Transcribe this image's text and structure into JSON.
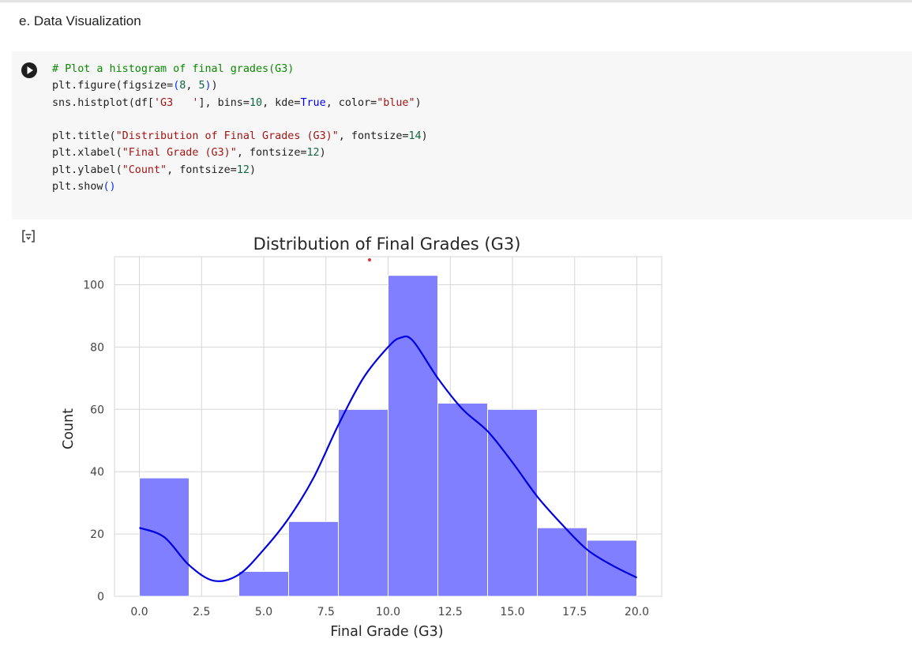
{
  "section": {
    "heading": "e. Data Visualization"
  },
  "code_cell": {
    "lines": [
      [
        {
          "t": "c",
          "v": "# Plot a histogram of final grades(G3)"
        }
      ],
      [
        {
          "t": "p",
          "v": "plt.figure(figsize="
        },
        {
          "t": "b",
          "v": "("
        },
        {
          "t": "n",
          "v": "8"
        },
        {
          "t": "p",
          "v": ", "
        },
        {
          "t": "n",
          "v": "5"
        },
        {
          "t": "b",
          "v": ")"
        },
        {
          "t": "p",
          "v": ")"
        }
      ],
      [
        {
          "t": "p",
          "v": "sns.histplot(df["
        },
        {
          "t": "s",
          "v": "'G3   '"
        },
        {
          "t": "p",
          "v": "], bins="
        },
        {
          "t": "n",
          "v": "10"
        },
        {
          "t": "p",
          "v": ", kde="
        },
        {
          "t": "k",
          "v": "True"
        },
        {
          "t": "p",
          "v": ", color="
        },
        {
          "t": "s",
          "v": "\"blue\""
        },
        {
          "t": "p",
          "v": ")"
        }
      ],
      [],
      [
        {
          "t": "p",
          "v": "plt.title("
        },
        {
          "t": "s",
          "v": "\"Distribution of Final Grades (G3)\""
        },
        {
          "t": "p",
          "v": ", fontsize="
        },
        {
          "t": "n",
          "v": "14"
        },
        {
          "t": "p",
          "v": ")"
        }
      ],
      [
        {
          "t": "p",
          "v": "plt.xlabel("
        },
        {
          "t": "s",
          "v": "\"Final Grade (G3)\""
        },
        {
          "t": "p",
          "v": ", fontsize="
        },
        {
          "t": "n",
          "v": "12"
        },
        {
          "t": "p",
          "v": ")"
        }
      ],
      [
        {
          "t": "p",
          "v": "plt.ylabel("
        },
        {
          "t": "s",
          "v": "\"Count\""
        },
        {
          "t": "p",
          "v": ", fontsize="
        },
        {
          "t": "n",
          "v": "12"
        },
        {
          "t": "p",
          "v": ")"
        }
      ],
      [
        {
          "t": "p",
          "v": "plt.show"
        },
        {
          "t": "b",
          "v": "()"
        }
      ]
    ]
  },
  "icons": {
    "run": "play-icon",
    "output": "output-toggle-icon"
  },
  "colors": {
    "bar_fill": "#7f7fff",
    "bar_edge": "#ffffff",
    "kde_line": "#0000e0",
    "grid": "#d6d6d6",
    "axis_text": "#444444",
    "cell_bg": "#f7f7f7"
  },
  "chart_data": {
    "type": "bar",
    "title": "Distribution of Final Grades (G3)",
    "xlabel": "Final Grade (G3)",
    "ylabel": "Count",
    "xlim": [
      -1.0,
      21.0
    ],
    "ylim": [
      0,
      109
    ],
    "xticks": [
      "0.0",
      "2.5",
      "5.0",
      "7.5",
      "10.0",
      "12.5",
      "15.0",
      "17.5",
      "20.0"
    ],
    "yticks": [
      "0",
      "20",
      "40",
      "60",
      "80",
      "100"
    ],
    "grid": true,
    "bins": [
      {
        "start": 0,
        "end": 2,
        "count": 38
      },
      {
        "start": 2,
        "end": 4,
        "count": 0
      },
      {
        "start": 4,
        "end": 6,
        "count": 8
      },
      {
        "start": 6,
        "end": 8,
        "count": 24
      },
      {
        "start": 8,
        "end": 10,
        "count": 60
      },
      {
        "start": 10,
        "end": 12,
        "count": 103
      },
      {
        "start": 12,
        "end": 14,
        "count": 62
      },
      {
        "start": 14,
        "end": 16,
        "count": 60
      },
      {
        "start": 16,
        "end": 18,
        "count": 22
      },
      {
        "start": 18,
        "end": 20,
        "count": 18
      }
    ],
    "kde": {
      "x": [
        0,
        1,
        2,
        3,
        4,
        5,
        6,
        7,
        8,
        9,
        10,
        10.5,
        11,
        12,
        13,
        14,
        15,
        16,
        17,
        18,
        19,
        20
      ],
      "y": [
        22,
        19,
        10,
        5,
        7,
        15,
        25,
        38,
        55,
        70,
        80,
        83,
        82,
        70,
        60,
        53,
        43,
        32,
        23,
        15,
        10,
        6
      ]
    }
  }
}
